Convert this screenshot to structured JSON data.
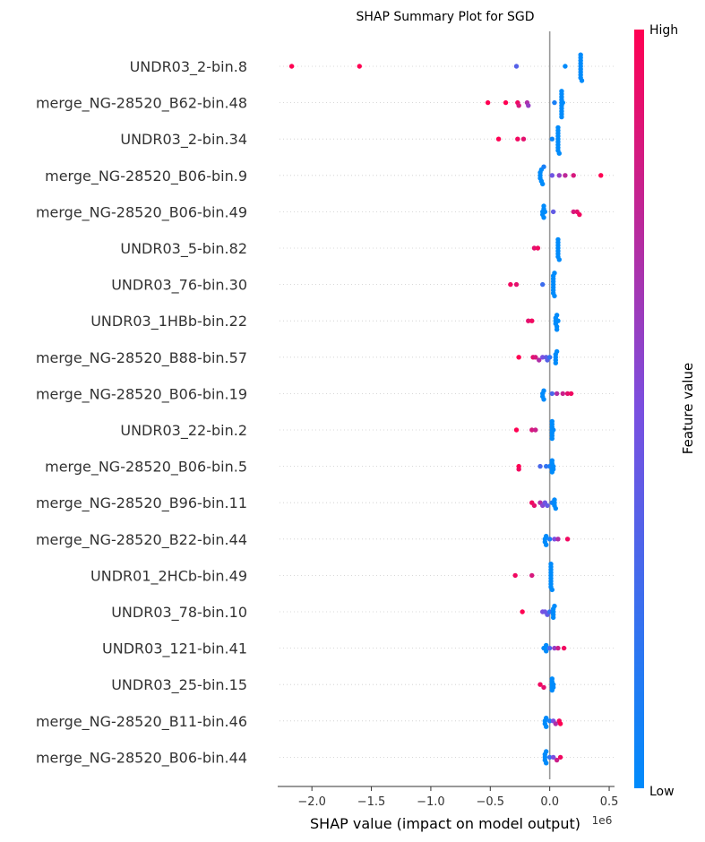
{
  "chart_data": {
    "type": "scatter",
    "title": "SHAP Summary Plot for SGD",
    "xlabel": "SHAP value (impact on model output)",
    "x_offset_label": "1e6",
    "xlim": [
      -2.25,
      0.56
    ],
    "xticks": [
      -2.0,
      -1.5,
      -1.0,
      -0.5,
      0.0,
      0.5
    ],
    "xtick_labels": [
      "−2.0",
      "−1.5",
      "−1.0",
      "−0.5",
      "0.0",
      "0.5"
    ],
    "colorbar": {
      "label": "Feature value",
      "high": "High",
      "low": "Low",
      "low_color": "#008bfb",
      "mid_color": "#7a4fe0",
      "high_color": "#ff0052"
    },
    "features": [
      {
        "name": "UNDR03_2-bin.8",
        "points": [
          [
            -2.17,
            1.0
          ],
          [
            -1.6,
            1.0
          ],
          [
            -0.28,
            0.35
          ],
          [
            0.13,
            0.0
          ],
          [
            0.26,
            0
          ],
          [
            0.26,
            0
          ],
          [
            0.26,
            0
          ],
          [
            0.26,
            0
          ],
          [
            0.26,
            0
          ],
          [
            0.26,
            0
          ],
          [
            0.26,
            0
          ],
          [
            0.26,
            0
          ],
          [
            0.26,
            0
          ],
          [
            0.27,
            0
          ]
        ]
      },
      {
        "name": "merge_NG-28520_B62-bin.48",
        "points": [
          [
            -0.52,
            1.0
          ],
          [
            -0.37,
            1.0
          ],
          [
            -0.27,
            0.95
          ],
          [
            -0.26,
            0.85
          ],
          [
            -0.19,
            0.7
          ],
          [
            -0.18,
            0.6
          ],
          [
            0.04,
            0.1
          ],
          [
            0.1,
            0
          ],
          [
            0.1,
            0
          ],
          [
            0.1,
            0
          ],
          [
            0.1,
            0
          ],
          [
            0.1,
            0
          ],
          [
            0.1,
            0
          ],
          [
            0.1,
            0
          ],
          [
            0.1,
            0
          ],
          [
            0.1,
            0
          ],
          [
            0.1,
            0
          ],
          [
            0.11,
            0
          ]
        ]
      },
      {
        "name": "UNDR03_2-bin.34",
        "points": [
          [
            -0.43,
            1.0
          ],
          [
            -0.27,
            0.95
          ],
          [
            -0.22,
            0.9
          ],
          [
            0.02,
            0.05
          ],
          [
            0.07,
            0
          ],
          [
            0.07,
            0
          ],
          [
            0.07,
            0
          ],
          [
            0.07,
            0
          ],
          [
            0.07,
            0
          ],
          [
            0.07,
            0
          ],
          [
            0.07,
            0
          ],
          [
            0.07,
            0
          ],
          [
            0.07,
            0
          ],
          [
            0.08,
            0
          ]
        ]
      },
      {
        "name": "merge_NG-28520_B06-bin.9",
        "points": [
          [
            -0.08,
            0
          ],
          [
            -0.08,
            0
          ],
          [
            -0.08,
            0
          ],
          [
            -0.07,
            0
          ],
          [
            -0.07,
            0
          ],
          [
            -0.06,
            0
          ],
          [
            -0.05,
            0.1
          ],
          [
            0.02,
            0.45
          ],
          [
            0.08,
            0.6
          ],
          [
            0.13,
            0.75
          ],
          [
            0.2,
            0.85
          ],
          [
            0.43,
            1.0
          ]
        ]
      },
      {
        "name": "merge_NG-28520_B06-bin.49",
        "points": [
          [
            -0.06,
            0
          ],
          [
            -0.06,
            0
          ],
          [
            -0.05,
            0
          ],
          [
            -0.05,
            0
          ],
          [
            -0.05,
            0
          ],
          [
            -0.04,
            0
          ],
          [
            0.03,
            0.4
          ],
          [
            0.2,
            0.85
          ],
          [
            0.23,
            0.9
          ],
          [
            0.25,
            0.95
          ]
        ]
      },
      {
        "name": "UNDR03_5-bin.82",
        "points": [
          [
            -0.13,
            0.9
          ],
          [
            -0.1,
            0.95
          ],
          [
            0.07,
            0
          ],
          [
            0.07,
            0
          ],
          [
            0.07,
            0
          ],
          [
            0.07,
            0
          ],
          [
            0.07,
            0
          ],
          [
            0.07,
            0
          ],
          [
            0.07,
            0
          ],
          [
            0.08,
            0
          ]
        ]
      },
      {
        "name": "UNDR03_76-bin.30",
        "points": [
          [
            -0.33,
            0.95
          ],
          [
            -0.28,
            0.9
          ],
          [
            -0.06,
            0.25
          ],
          [
            0.03,
            0
          ],
          [
            0.03,
            0
          ],
          [
            0.03,
            0
          ],
          [
            0.03,
            0
          ],
          [
            0.03,
            0
          ],
          [
            0.03,
            0
          ],
          [
            0.03,
            0
          ],
          [
            0.04,
            0
          ],
          [
            0.04,
            0
          ]
        ]
      },
      {
        "name": "UNDR03_1HBb-bin.22",
        "points": [
          [
            -0.18,
            0.9
          ],
          [
            -0.15,
            0.95
          ],
          [
            0.05,
            0
          ],
          [
            0.05,
            0
          ],
          [
            0.05,
            0
          ],
          [
            0.06,
            0
          ],
          [
            0.06,
            0
          ],
          [
            0.06,
            0
          ],
          [
            0.07,
            0
          ]
        ]
      },
      {
        "name": "merge_NG-28520_B88-bin.57",
        "points": [
          [
            -0.26,
            1.0
          ],
          [
            -0.14,
            0.9
          ],
          [
            -0.12,
            0.85
          ],
          [
            -0.09,
            0.7
          ],
          [
            -0.06,
            0.5
          ],
          [
            -0.03,
            0.4
          ],
          [
            -0.02,
            0.35
          ],
          [
            0.0,
            0.2
          ],
          [
            0.05,
            0
          ],
          [
            0.05,
            0
          ],
          [
            0.05,
            0
          ],
          [
            0.05,
            0
          ],
          [
            0.06,
            0
          ]
        ]
      },
      {
        "name": "merge_NG-28520_B06-bin.19",
        "points": [
          [
            -0.06,
            0
          ],
          [
            -0.06,
            0
          ],
          [
            -0.05,
            0
          ],
          [
            -0.05,
            0
          ],
          [
            0.02,
            0.3
          ],
          [
            0.06,
            0.7
          ],
          [
            0.11,
            0.8
          ],
          [
            0.15,
            0.9
          ],
          [
            0.18,
            0.95
          ]
        ]
      },
      {
        "name": "UNDR03_22-bin.2",
        "points": [
          [
            -0.28,
            1.0
          ],
          [
            -0.15,
            0.85
          ],
          [
            -0.12,
            0.8
          ],
          [
            0.02,
            0
          ],
          [
            0.02,
            0
          ],
          [
            0.02,
            0
          ],
          [
            0.02,
            0
          ],
          [
            0.02,
            0
          ],
          [
            0.02,
            0
          ],
          [
            0.02,
            0
          ],
          [
            0.03,
            0
          ]
        ]
      },
      {
        "name": "merge_NG-28520_B06-bin.5",
        "points": [
          [
            -0.26,
            1.0
          ],
          [
            -0.26,
            0.95
          ],
          [
            -0.08,
            0.3
          ],
          [
            -0.03,
            0.2
          ],
          [
            0.0,
            0.1
          ],
          [
            0.02,
            0
          ],
          [
            0.02,
            0
          ],
          [
            0.02,
            0
          ],
          [
            0.02,
            0
          ],
          [
            0.03,
            0
          ],
          [
            0.03,
            0
          ]
        ]
      },
      {
        "name": "merge_NG-28520_B96-bin.11",
        "points": [
          [
            -0.15,
            0.95
          ],
          [
            -0.13,
            0.9
          ],
          [
            -0.08,
            0.7
          ],
          [
            -0.06,
            0.55
          ],
          [
            -0.04,
            0.45
          ],
          [
            -0.02,
            0.4
          ],
          [
            0.02,
            0.1
          ],
          [
            0.04,
            0
          ],
          [
            0.04,
            0
          ],
          [
            0.04,
            0
          ],
          [
            0.05,
            0
          ]
        ]
      },
      {
        "name": "merge_NG-28520_B22-bin.44",
        "points": [
          [
            -0.04,
            0
          ],
          [
            -0.04,
            0
          ],
          [
            -0.03,
            0
          ],
          [
            -0.03,
            0
          ],
          [
            0.0,
            0.1
          ],
          [
            0.04,
            0.5
          ],
          [
            0.07,
            0.7
          ],
          [
            0.15,
            0.95
          ]
        ]
      },
      {
        "name": "UNDR01_2HCb-bin.49",
        "points": [
          [
            -0.29,
            0.95
          ],
          [
            -0.15,
            0.85
          ],
          [
            0.01,
            0
          ],
          [
            0.01,
            0
          ],
          [
            0.01,
            0
          ],
          [
            0.01,
            0
          ],
          [
            0.01,
            0
          ],
          [
            0.01,
            0
          ],
          [
            0.01,
            0
          ],
          [
            0.01,
            0
          ],
          [
            0.01,
            0
          ],
          [
            0.02,
            0
          ]
        ]
      },
      {
        "name": "UNDR03_78-bin.10",
        "points": [
          [
            -0.23,
            1.0
          ],
          [
            -0.06,
            0.5
          ],
          [
            -0.04,
            0.45
          ],
          [
            -0.02,
            0.4
          ],
          [
            0.0,
            0.2
          ],
          [
            0.03,
            0
          ],
          [
            0.03,
            0
          ],
          [
            0.03,
            0
          ],
          [
            0.03,
            0
          ],
          [
            0.04,
            0
          ]
        ]
      },
      {
        "name": "UNDR03_121-bin.41",
        "points": [
          [
            -0.05,
            0
          ],
          [
            -0.04,
            0
          ],
          [
            -0.03,
            0
          ],
          [
            -0.03,
            0
          ],
          [
            0.0,
            0.3
          ],
          [
            0.04,
            0.6
          ],
          [
            0.07,
            0.8
          ],
          [
            0.12,
            0.95
          ]
        ]
      },
      {
        "name": "UNDR03_25-bin.15",
        "points": [
          [
            -0.08,
            0.95
          ],
          [
            -0.05,
            0.9
          ],
          [
            0.02,
            0
          ],
          [
            0.02,
            0
          ],
          [
            0.02,
            0
          ],
          [
            0.02,
            0
          ],
          [
            0.02,
            0
          ],
          [
            0.03,
            0
          ],
          [
            0.03,
            0
          ]
        ]
      },
      {
        "name": "merge_NG-28520_B11-bin.46",
        "points": [
          [
            -0.04,
            0
          ],
          [
            -0.04,
            0
          ],
          [
            -0.03,
            0
          ],
          [
            -0.03,
            0
          ],
          [
            0.0,
            0.1
          ],
          [
            0.03,
            0.5
          ],
          [
            0.05,
            0.7
          ],
          [
            0.08,
            0.95
          ],
          [
            0.09,
            1.0
          ]
        ]
      },
      {
        "name": "merge_NG-28520_B06-bin.44",
        "points": [
          [
            -0.04,
            0
          ],
          [
            -0.04,
            0
          ],
          [
            -0.04,
            0
          ],
          [
            -0.03,
            0
          ],
          [
            -0.03,
            0
          ],
          [
            0.0,
            0.2
          ],
          [
            0.03,
            0.5
          ],
          [
            0.06,
            0.8
          ],
          [
            0.09,
            0.95
          ]
        ]
      }
    ]
  }
}
